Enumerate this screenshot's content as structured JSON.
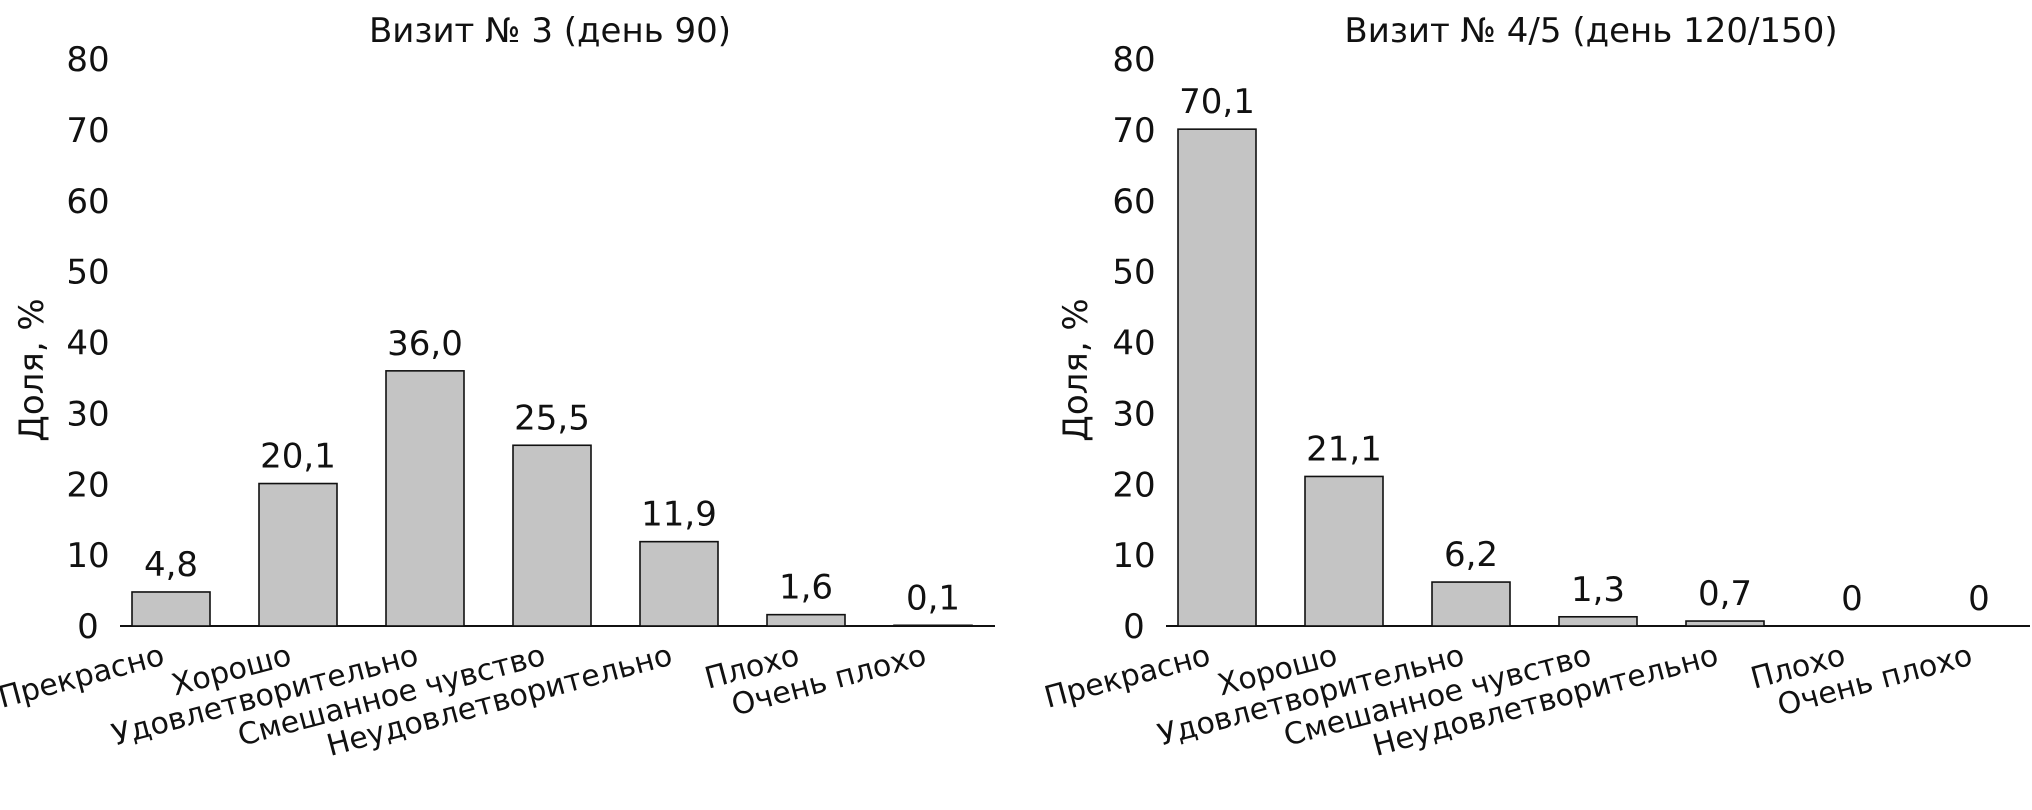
{
  "chart_data": [
    {
      "type": "bar",
      "title": "Визит № 3 (день 90)",
      "xlabel": "",
      "ylabel": "Доля, %",
      "ylim": [
        0,
        80
      ],
      "yticks": [
        "0",
        "10",
        "20",
        "30",
        "40",
        "50",
        "60",
        "70",
        "80"
      ],
      "categories": [
        "Прекрасно",
        "Хорошо",
        "Удовлетворительно",
        "Смешанное чувство",
        "Неудовлетворительно",
        "Плохо",
        "Очень плохо"
      ],
      "values": [
        4.8,
        20.1,
        36.0,
        25.5,
        11.9,
        1.6,
        0.1
      ],
      "data_labels": [
        "4,8",
        "20,1",
        "36,0",
        "25,5",
        "11,9",
        "1,6",
        "0,1"
      ],
      "grid": false,
      "bar_color": "#c4c4c4"
    },
    {
      "type": "bar",
      "title": "Визит № 4/5 (день 120/150)",
      "xlabel": "",
      "ylabel": "Доля, %",
      "ylim": [
        0,
        80
      ],
      "yticks": [
        "0",
        "10",
        "20",
        "30",
        "40",
        "50",
        "60",
        "70",
        "80"
      ],
      "categories": [
        "Прекрасно",
        "Хорошо",
        "Удовлетворительно",
        "Смешанное чувство",
        "Неудовлетворительно",
        "Плохо",
        "Очень плохо"
      ],
      "values": [
        70.1,
        21.1,
        6.2,
        1.3,
        0.7,
        0,
        0
      ],
      "data_labels": [
        "70,1",
        "21,1",
        "6,2",
        "1,3",
        "0,7",
        "0",
        "0"
      ],
      "grid": false,
      "bar_color": "#c4c4c4"
    }
  ]
}
